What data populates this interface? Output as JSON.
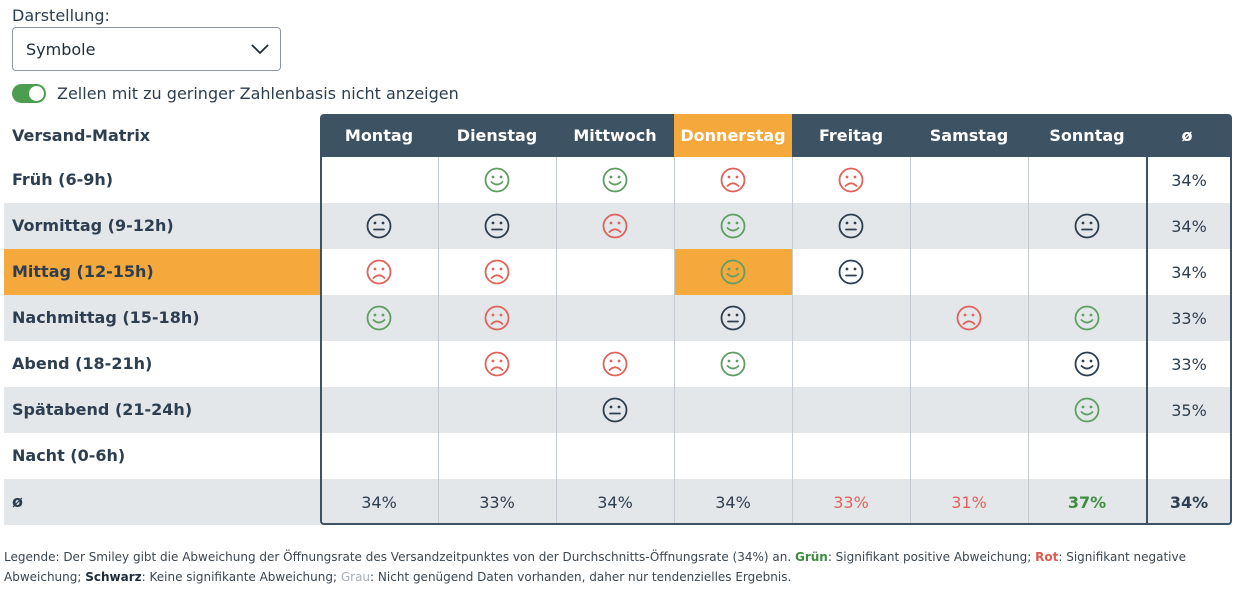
{
  "display": {
    "label": "Darstellung:",
    "selected": "Symbole"
  },
  "toggle": {
    "label": "Zellen mit zu geringer Zahlenbasis nicht anzeigen",
    "on": true
  },
  "matrix": {
    "title": "Versand-Matrix",
    "avg_symbol": "ø",
    "days": [
      "Montag",
      "Dienstag",
      "Mittwoch",
      "Donnerstag",
      "Freitag",
      "Samstag",
      "Sonntag"
    ],
    "highlight_day": "Donnerstag",
    "highlight_row": "Mittag (12-15h)",
    "rows": [
      {
        "label": "Früh (6-9h)",
        "cells": [
          "",
          "happy-green",
          "happy-green",
          "sad-red",
          "sad-red",
          "",
          ""
        ],
        "avg": "34%"
      },
      {
        "label": "Vormittag (9-12h)",
        "cells": [
          "neutral-black",
          "neutral-black",
          "sad-red",
          "happy-green",
          "neutral-black",
          "",
          "neutral-black"
        ],
        "avg": "34%"
      },
      {
        "label": "Mittag (12-15h)",
        "cells": [
          "sad-red",
          "sad-red",
          "",
          "happy-green",
          "neutral-black",
          "",
          ""
        ],
        "avg": "34%"
      },
      {
        "label": "Nachmittag (15-18h)",
        "cells": [
          "happy-green",
          "sad-red",
          "",
          "neutral-black",
          "",
          "sad-red",
          "happy-green"
        ],
        "avg": "33%"
      },
      {
        "label": "Abend (18-21h)",
        "cells": [
          "",
          "sad-red",
          "sad-red",
          "happy-green",
          "",
          "",
          "happy-black"
        ],
        "avg": "33%"
      },
      {
        "label": "Spätabend (21-24h)",
        "cells": [
          "",
          "",
          "neutral-black",
          "",
          "",
          "",
          "happy-green"
        ],
        "avg": "35%"
      },
      {
        "label": "Nacht (0-6h)",
        "cells": [
          "",
          "",
          "",
          "",
          "",
          "",
          ""
        ],
        "avg": ""
      }
    ],
    "averages": {
      "values": [
        "34%",
        "33%",
        "34%",
        "34%",
        "33%",
        "31%",
        "37%"
      ],
      "colors": [
        "normal",
        "normal",
        "normal",
        "normal",
        "red",
        "red",
        "green"
      ],
      "overall": "34%"
    }
  },
  "legend": {
    "part1": "Legende: Der Smiley gibt die Abweichung der Öffnungsrate des Versandzeitpunktes von der Durchschnitts-Öffnungsrate (34%) an. ",
    "green_label": "Grün",
    "green_text": ": Signifikant positive Abweichung; ",
    "red_label": "Rot",
    "red_text": ": Signifikant negative Abweichung; ",
    "black_label": "Schwarz",
    "black_text": ": Keine signifikante Abweichung; ",
    "grey_label": "Grau",
    "grey_text": ": Nicht genügend Daten vorhanden, daher nur tendenzielles Ergebnis."
  },
  "colors": {
    "green": "#5f9e62",
    "red": "#e0625a",
    "black": "#2c3e50",
    "header": "#3d5263",
    "highlight": "#f5a83c"
  }
}
